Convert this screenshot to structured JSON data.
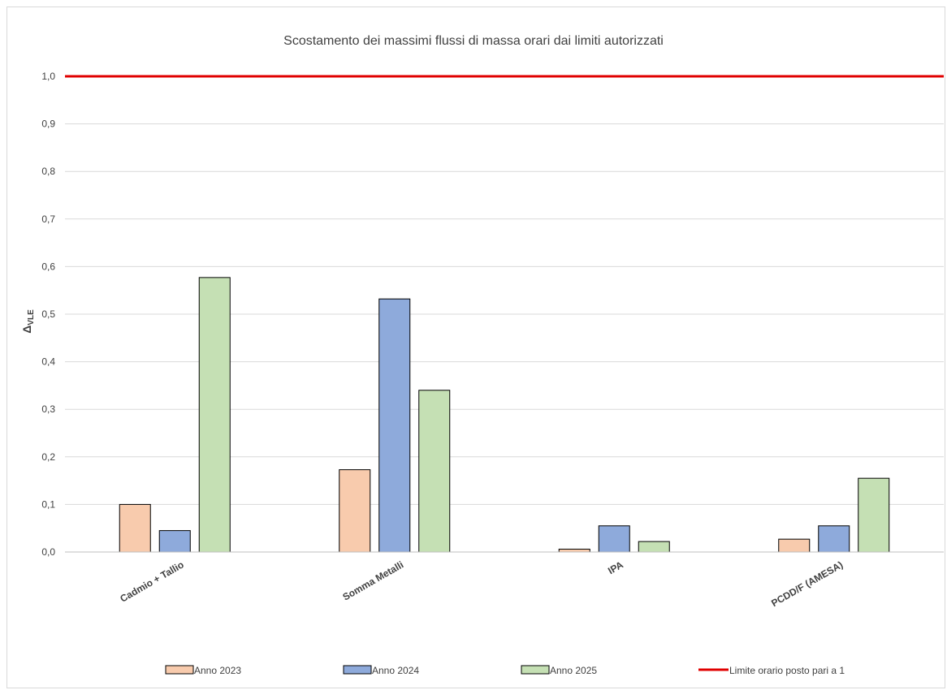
{
  "chart_data": {
    "type": "bar",
    "title": "Scostamento dei massimi flussi di massa orari dai limiti autorizzati",
    "ylabel": "Δ",
    "ylabel_sub": "VLE",
    "categories": [
      "Cadmio + Tallio",
      "Somma Metalli",
      "IPA",
      "PCDD/F (AMESA)"
    ],
    "series": [
      {
        "name": "Anno 2023",
        "color": "#f8cbad",
        "values": [
          0.1,
          0.173,
          0.006,
          0.027
        ]
      },
      {
        "name": "Anno 2024",
        "color": "#8eaadb",
        "values": [
          0.045,
          0.532,
          0.055,
          0.055
        ]
      },
      {
        "name": "Anno 2025",
        "color": "#c5e0b4",
        "values": [
          0.577,
          0.34,
          0.022,
          0.155
        ]
      }
    ],
    "limit_line": {
      "name": "Limite orario posto pari a 1",
      "value": 1.0,
      "color": "#e00000"
    },
    "ylim": [
      0,
      1.0
    ],
    "y_ticks": [
      "0,0",
      "0,1",
      "0,2",
      "0,3",
      "0,4",
      "0,5",
      "0,6",
      "0,7",
      "0,8",
      "0,9",
      "1,0"
    ],
    "grid": true,
    "legend_position": "bottom"
  }
}
